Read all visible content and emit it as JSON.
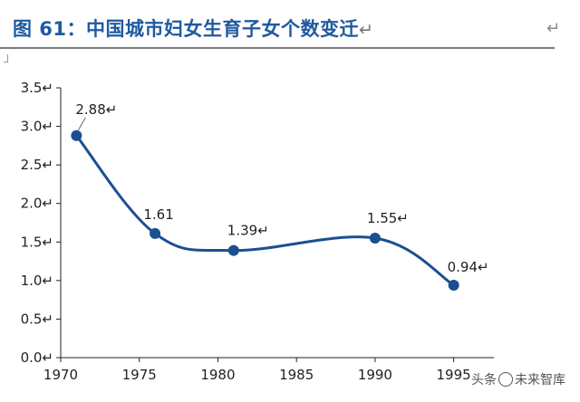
{
  "header": {
    "title": "图 61：中国城市妇女生育子女个数变迁",
    "title_mark": "↵",
    "corner_mark": "↵"
  },
  "colors": {
    "line": "#1b4f91",
    "title": "#1f5aa0",
    "axis": "#222222"
  },
  "chart_data": {
    "type": "line",
    "title": "",
    "xlabel": "",
    "ylabel": "",
    "x": [
      1971,
      1976,
      1981,
      1990,
      1995
    ],
    "series": [
      {
        "values": [
          2.88,
          1.61,
          1.39,
          1.55,
          0.94
        ]
      }
    ],
    "data_labels": [
      "2.88",
      "1.61",
      "1.39",
      "1.55",
      "0.94"
    ],
    "data_label_suffix": [
      "↵",
      "",
      "↵",
      "↵",
      "↵"
    ],
    "xlim": [
      1970,
      1999
    ],
    "ylim": [
      0,
      3.5
    ],
    "xticks": [
      1970,
      1975,
      1980,
      1985,
      1990,
      1995
    ],
    "yticks": [
      0.0,
      0.5,
      1.0,
      1.5,
      2.0,
      2.5,
      3.0,
      3.5
    ],
    "ytick_labels": [
      "0.0↵",
      "0.5↵",
      "1.0↵",
      "1.5↵",
      "2.0↵",
      "2.5↵",
      "3.0↵",
      "3.5↵"
    ],
    "xtick_labels": [
      "1970",
      "1975",
      "1980",
      "1985",
      "1990",
      "1995"
    ],
    "smooth": true,
    "grid": false,
    "legend": "none"
  },
  "watermark": {
    "prefix": "头条",
    "text": "未来智库"
  }
}
